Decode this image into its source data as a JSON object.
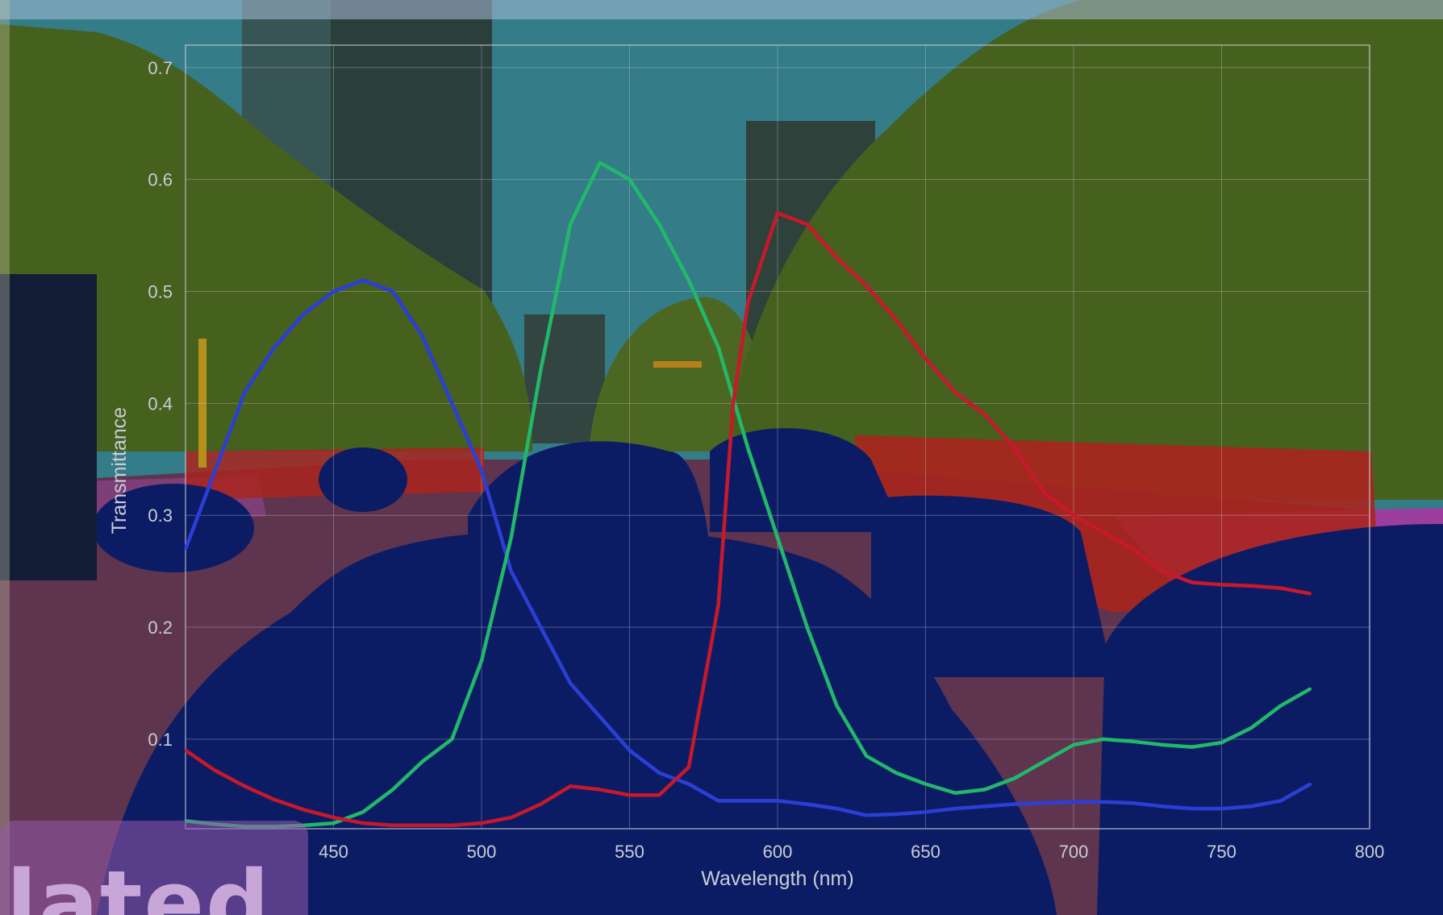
{
  "scene": {
    "description_colors": {
      "sky": "#3b8b96",
      "vegetation": "#4f6b1e",
      "road": "#6a3a55",
      "vehicle": "#0d1e6e",
      "pedestrian": "#c0281e",
      "sidewalk": "#b045b0",
      "building": "#3a4a45"
    },
    "caption_fragment": "lated"
  },
  "chart_data": {
    "type": "line",
    "title": "",
    "xlabel": "Wavelength (nm)",
    "ylabel": "Transmittance",
    "xlim": [
      400,
      800
    ],
    "ylim": [
      0.02,
      0.72
    ],
    "xticks": [
      450,
      500,
      550,
      600,
      650,
      700,
      750,
      800
    ],
    "yticks": [
      0.1,
      0.2,
      0.3,
      0.4,
      0.5,
      0.6,
      0.7
    ],
    "grid": true,
    "series": [
      {
        "color": "#2b3fd6",
        "x": [
          400,
          410,
          420,
          430,
          440,
          450,
          460,
          470,
          480,
          490,
          500,
          510,
          520,
          530,
          540,
          550,
          560,
          570,
          580,
          590,
          600,
          610,
          620,
          630,
          640,
          650,
          660,
          670,
          680,
          690,
          700,
          710,
          720,
          730,
          740,
          750,
          760,
          770,
          780
        ],
        "values": [
          0.27,
          0.34,
          0.41,
          0.45,
          0.48,
          0.5,
          0.51,
          0.5,
          0.46,
          0.4,
          0.34,
          0.25,
          0.2,
          0.15,
          0.12,
          0.09,
          0.07,
          0.06,
          0.045,
          0.045,
          0.045,
          0.042,
          0.038,
          0.032,
          0.033,
          0.035,
          0.038,
          0.04,
          0.042,
          0.043,
          0.044,
          0.044,
          0.043,
          0.04,
          0.038,
          0.038,
          0.04,
          0.045,
          0.06
        ]
      },
      {
        "color": "#22b86a",
        "x": [
          400,
          410,
          420,
          430,
          440,
          450,
          460,
          470,
          480,
          490,
          500,
          510,
          520,
          530,
          540,
          550,
          560,
          570,
          580,
          590,
          600,
          610,
          620,
          630,
          640,
          650,
          660,
          670,
          680,
          690,
          700,
          710,
          720,
          730,
          740,
          750,
          760,
          770,
          780
        ],
        "values": [
          0.027,
          0.024,
          0.022,
          0.022,
          0.023,
          0.025,
          0.035,
          0.055,
          0.08,
          0.1,
          0.17,
          0.28,
          0.43,
          0.56,
          0.615,
          0.6,
          0.56,
          0.51,
          0.45,
          0.36,
          0.28,
          0.2,
          0.13,
          0.085,
          0.07,
          0.06,
          0.052,
          0.055,
          0.065,
          0.08,
          0.095,
          0.1,
          0.098,
          0.095,
          0.093,
          0.097,
          0.11,
          0.13,
          0.145
        ]
      },
      {
        "color": "#c8182c",
        "x": [
          400,
          410,
          420,
          430,
          440,
          450,
          460,
          470,
          480,
          490,
          500,
          510,
          520,
          530,
          540,
          550,
          560,
          570,
          580,
          585,
          590,
          600,
          610,
          620,
          630,
          640,
          650,
          660,
          670,
          680,
          690,
          700,
          710,
          720,
          730,
          740,
          750,
          760,
          770,
          780
        ],
        "values": [
          0.09,
          0.072,
          0.058,
          0.046,
          0.037,
          0.03,
          0.025,
          0.023,
          0.023,
          0.023,
          0.025,
          0.03,
          0.042,
          0.058,
          0.055,
          0.05,
          0.05,
          0.075,
          0.22,
          0.4,
          0.49,
          0.57,
          0.56,
          0.53,
          0.505,
          0.475,
          0.44,
          0.41,
          0.39,
          0.36,
          0.32,
          0.3,
          0.285,
          0.27,
          0.25,
          0.24,
          0.238,
          0.237,
          0.235,
          0.23
        ]
      }
    ]
  }
}
